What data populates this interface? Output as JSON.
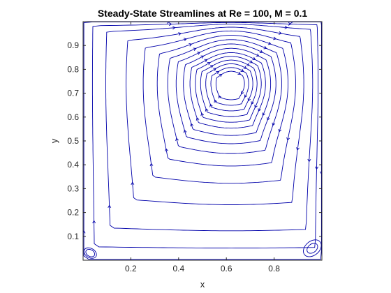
{
  "chart_data": {
    "type": "streamline",
    "title": "Steady-State Streamlines at Re = 100, M = 0.1",
    "xlabel": "x",
    "ylabel": "y",
    "xlim": [
      0,
      1
    ],
    "ylim": [
      0,
      1
    ],
    "xticks": [
      {
        "value": 0.2,
        "label": "0.2"
      },
      {
        "value": 0.4,
        "label": "0.4"
      },
      {
        "value": 0.6,
        "label": "0.6"
      },
      {
        "value": 0.8,
        "label": "0.8"
      }
    ],
    "yticks": [
      {
        "value": 0.1,
        "label": "0.1"
      },
      {
        "value": 0.2,
        "label": "0.2"
      },
      {
        "value": 0.3,
        "label": "0.3"
      },
      {
        "value": 0.4,
        "label": "0.4"
      },
      {
        "value": 0.5,
        "label": "0.5"
      },
      {
        "value": 0.6,
        "label": "0.6"
      },
      {
        "value": 0.7,
        "label": "0.7"
      },
      {
        "value": 0.8,
        "label": "0.8"
      },
      {
        "value": 0.9,
        "label": "0.9"
      }
    ],
    "line_color": "#0000aa",
    "primary_vortex": {
      "center": [
        0.62,
        0.74
      ],
      "flow_direction": "clockwise",
      "levels": [
        0.2,
        0.26,
        0.32,
        0.38,
        0.44,
        0.5,
        0.57,
        0.64,
        0.71,
        0.78,
        0.85,
        0.91,
        0.96,
        0.985,
        1.0
      ]
    },
    "secondary_vortices": [
      {
        "center": [
          0.03,
          0.03
        ],
        "radii": [
          0.02,
          0.028
        ],
        "location": "bottom-left"
      },
      {
        "center": [
          0.96,
          0.05
        ],
        "radii": [
          0.025,
          0.042
        ],
        "location": "bottom-right"
      }
    ],
    "grid": false,
    "box": true
  }
}
